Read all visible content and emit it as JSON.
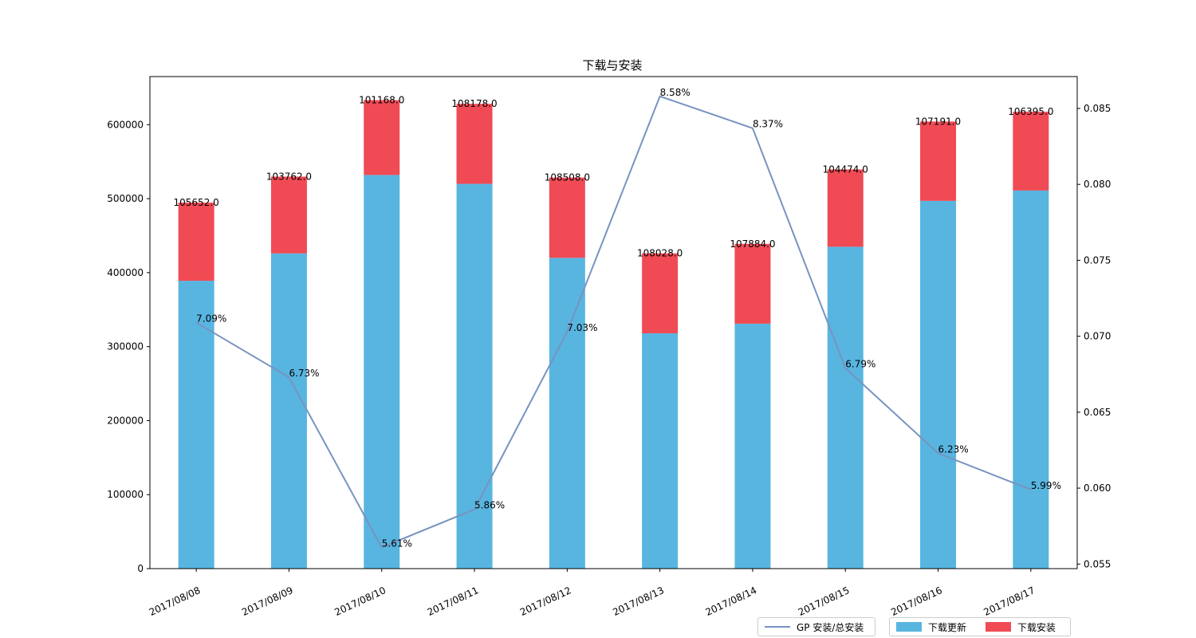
{
  "chart_data": {
    "title": "下载与安装",
    "categories": [
      "2017/08/08",
      "2017/08/09",
      "2017/08/10",
      "2017/08/11",
      "2017/08/12",
      "2017/08/13",
      "2017/08/14",
      "2017/08/15",
      "2017/08/16",
      "2017/08/17"
    ],
    "bars": {
      "type": "stacked-bar",
      "series": [
        {
          "name": "下载更新",
          "color": "#58b5e0",
          "values": [
            389000,
            426000,
            532000,
            520000,
            420000,
            318000,
            331000,
            435000,
            497000,
            511000
          ]
        },
        {
          "name": "下载安装",
          "color": "#f04a55",
          "values": [
            105652,
            103762,
            101168,
            108178,
            108508,
            108028,
            107884,
            104474,
            107191,
            106395
          ]
        }
      ],
      "data_labels": [
        "105652.0",
        "103762.0",
        "101168.0",
        "108178.0",
        "108508.0",
        "108028.0",
        "107884.0",
        "104474.0",
        "107191.0",
        "106395.0"
      ],
      "ylim": [
        0,
        665000
      ],
      "yticks": [
        0,
        100000,
        200000,
        300000,
        400000,
        500000,
        600000
      ],
      "ytick_labels": [
        "0",
        "100000",
        "200000",
        "300000",
        "400000",
        "500000",
        "600000"
      ]
    },
    "line": {
      "type": "line",
      "name": "GP 安装/总安装",
      "color": "#7893c0",
      "values": [
        0.0709,
        0.0673,
        0.0561,
        0.0586,
        0.0703,
        0.0858,
        0.0837,
        0.0679,
        0.0623,
        0.0599
      ],
      "data_labels": [
        "7.09%",
        "6.73%",
        "5.61%",
        "5.86%",
        "7.03%",
        "8.58%",
        "8.37%",
        "6.79%",
        "6.23%",
        "5.99%"
      ],
      "ylim": [
        0.0547,
        0.0871
      ],
      "yticks": [
        0.055,
        0.06,
        0.065,
        0.07,
        0.075,
        0.08,
        0.085
      ],
      "ytick_labels": [
        "0.055",
        "0.060",
        "0.065",
        "0.070",
        "0.075",
        "0.080",
        "0.085"
      ]
    },
    "grid": false,
    "legend_position": "bottom-right"
  },
  "legend": {
    "line_label": "GP 安装/总安装",
    "bar1_label": "下载更新",
    "bar2_label": "下载安装"
  }
}
